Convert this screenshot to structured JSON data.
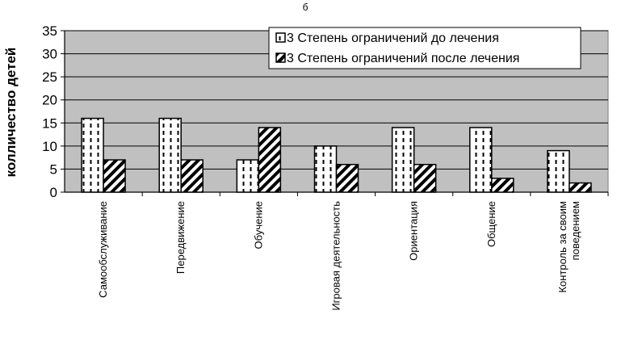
{
  "chart_data": {
    "type": "bar",
    "title": "б",
    "xlabel": "",
    "ylabel": "колличество детей",
    "ylim": [
      0,
      35
    ],
    "yticks": [
      0,
      5,
      10,
      15,
      20,
      25,
      30,
      35
    ],
    "grid": true,
    "legend_position": "top-right",
    "categories": [
      [
        "Самообслуживание"
      ],
      [
        "Передвижение"
      ],
      [
        "Обучение"
      ],
      [
        "Игровая деятельность"
      ],
      [
        "Ориентация"
      ],
      [
        "Общение"
      ],
      [
        "Контроль за своим",
        "поведением"
      ]
    ],
    "series": [
      {
        "name": "3 Степень ограничений до лечения",
        "values": [
          16,
          16,
          7,
          10,
          14,
          14,
          9
        ]
      },
      {
        "name": "3 Степень ограничений после лечения",
        "values": [
          7,
          7,
          14,
          6,
          6,
          3,
          2
        ]
      }
    ],
    "colors": {
      "plot_bg": "#c0c0c0",
      "bar_fill": "#ffffff",
      "bar_pattern": "#000000",
      "grid": "#000000"
    }
  }
}
